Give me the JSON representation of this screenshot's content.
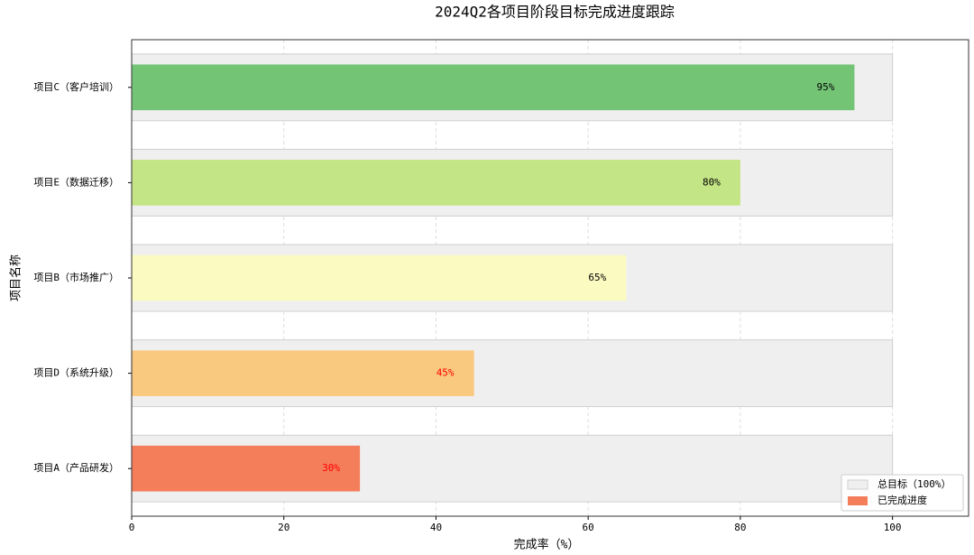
{
  "chart_data": {
    "type": "barh",
    "title": "2024Q2各项目阶段目标完成进度跟踪",
    "xlabel": "完成率（%）",
    "ylabel": "项目名称",
    "categories": [
      "项目C（客户培训）",
      "项目E（数据迁移）",
      "项目B（市场推广）",
      "项目D（系统升级）",
      "项目A（产品研发）"
    ],
    "series": [
      {
        "name": "总目标（100%）",
        "color": "#efefef",
        "values": [
          100,
          100,
          100,
          100,
          100
        ]
      },
      {
        "name": "已完成进度",
        "color": "#f47d5a",
        "colors": [
          "#74c476",
          "#c4e585",
          "#fbfbc1",
          "#fac980",
          "#f47d5a"
        ],
        "values": [
          95,
          80,
          65,
          45,
          30
        ],
        "value_labels": [
          "95%",
          "80%",
          "65%",
          "45%",
          "30%"
        ],
        "value_label_colors": [
          "black",
          "black",
          "black",
          "red",
          "red"
        ]
      }
    ],
    "xlim": [
      0,
      110
    ],
    "xticks": [
      0,
      20,
      40,
      60,
      80,
      100
    ],
    "grid": true,
    "legend": "lower right"
  }
}
